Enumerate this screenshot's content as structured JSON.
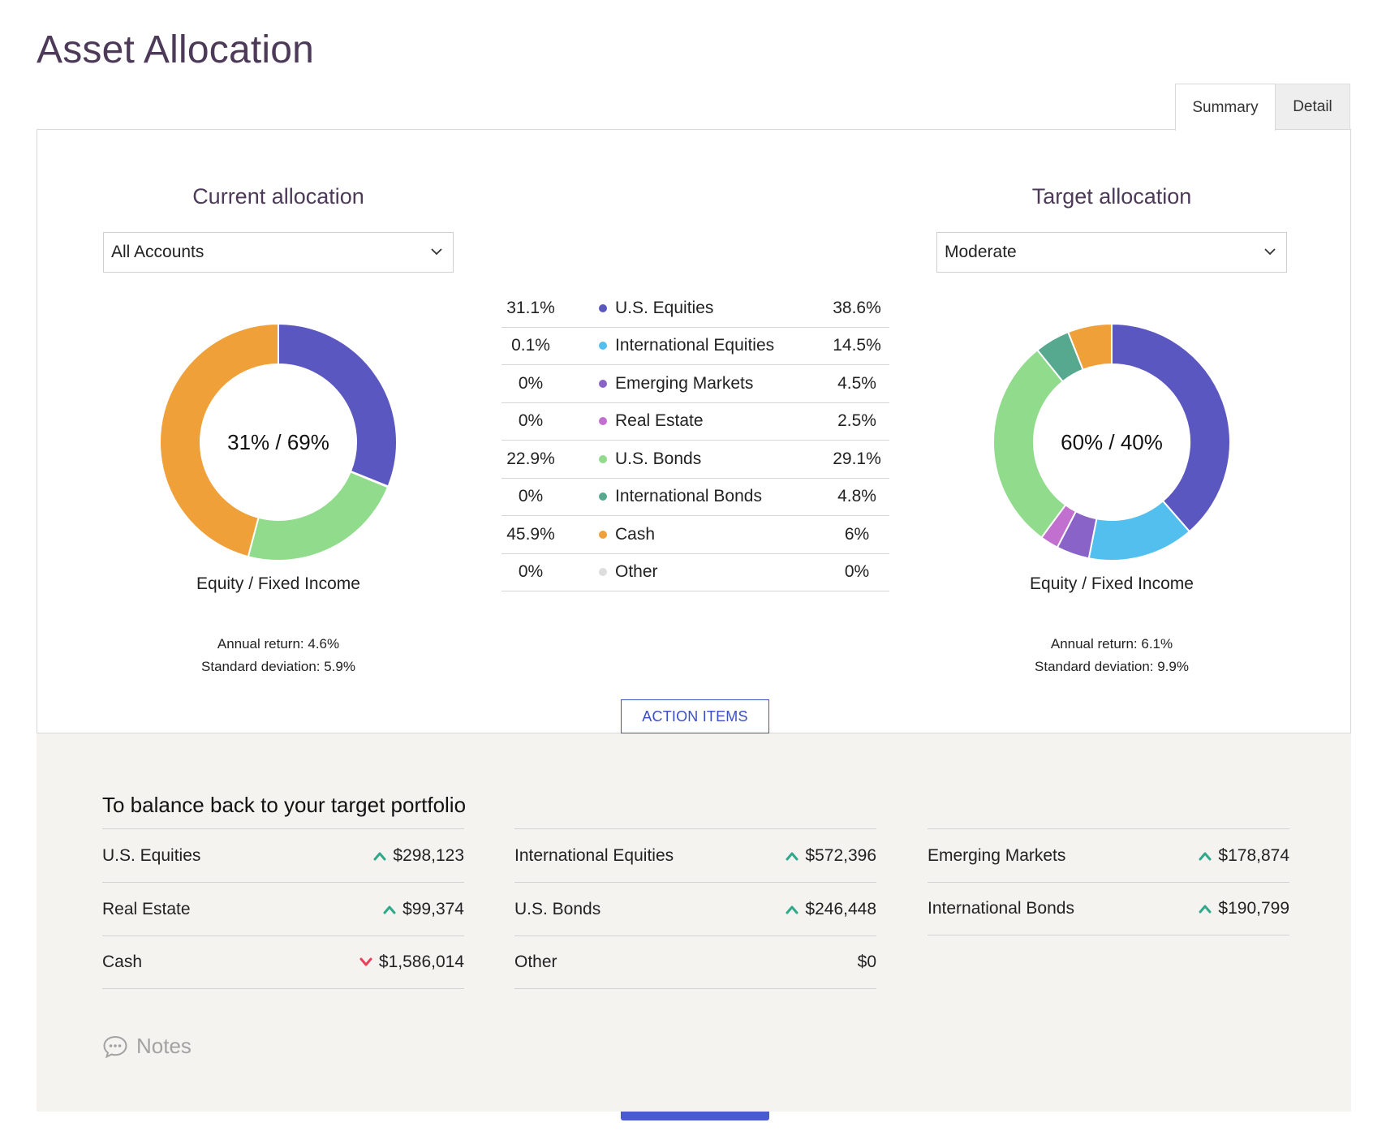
{
  "page": {
    "title": "Asset Allocation"
  },
  "tabs": [
    {
      "label": "Summary"
    },
    {
      "label": "Detail"
    }
  ],
  "current": {
    "title": "Current allocation",
    "select_value": "All Accounts",
    "center_label": "31% / 69%",
    "sub_label": "Equity / Fixed Income",
    "annual_return": "Annual return: 4.6%",
    "std_dev": "Standard deviation: 5.9%"
  },
  "target": {
    "title": "Target allocation",
    "select_value": "Moderate",
    "center_label": "60% / 40%",
    "sub_label": "Equity / Fixed Income",
    "annual_return": "Annual return: 6.1%",
    "std_dev": "Standard deviation: 9.9%"
  },
  "legend": [
    {
      "current": "31.1%",
      "name": "U.S. Equities",
      "target": "38.6%",
      "color": "#5b57c0"
    },
    {
      "current": "0.1%",
      "name": "International Equities",
      "target": "14.5%",
      "color": "#53bfee"
    },
    {
      "current": "0%",
      "name": "Emerging Markets",
      "target": "4.5%",
      "color": "#8a63c9"
    },
    {
      "current": "0%",
      "name": "Real Estate",
      "target": "2.5%",
      "color": "#c270cf"
    },
    {
      "current": "22.9%",
      "name": "U.S. Bonds",
      "target": "29.1%",
      "color": "#90db8c"
    },
    {
      "current": "0%",
      "name": "International Bonds",
      "target": "4.8%",
      "color": "#56a88e"
    },
    {
      "current": "45.9%",
      "name": "Cash",
      "target": "6%",
      "color": "#f0a038"
    },
    {
      "current": "0%",
      "name": "Other",
      "target": "0%",
      "color": "#dddddd"
    }
  ],
  "chart_data": [
    {
      "type": "pie",
      "title": "Current allocation",
      "categories": [
        "U.S. Equities",
        "International Equities",
        "Emerging Markets",
        "Real Estate",
        "U.S. Bonds",
        "International Bonds",
        "Cash",
        "Other"
      ],
      "values": [
        31.1,
        0.1,
        0,
        0,
        22.9,
        0,
        45.9,
        0
      ],
      "colors": [
        "#5b57c0",
        "#53bfee",
        "#8a63c9",
        "#c270cf",
        "#90db8c",
        "#56a88e",
        "#f0a038",
        "#dddddd"
      ]
    },
    {
      "type": "pie",
      "title": "Target allocation",
      "categories": [
        "U.S. Equities",
        "International Equities",
        "Emerging Markets",
        "Real Estate",
        "U.S. Bonds",
        "International Bonds",
        "Cash",
        "Other"
      ],
      "values": [
        38.6,
        14.5,
        4.5,
        2.5,
        29.1,
        4.8,
        6,
        0
      ],
      "colors": [
        "#5b57c0",
        "#53bfee",
        "#8a63c9",
        "#c270cf",
        "#90db8c",
        "#56a88e",
        "#f0a038",
        "#dddddd"
      ]
    }
  ],
  "action_items": {
    "label": "ACTION ITEMS"
  },
  "balance": {
    "title": "To balance back to your target portfolio",
    "columns": [
      [
        {
          "name": "U.S. Equities",
          "value": "$298,123",
          "direction": "up"
        },
        {
          "name": "Real Estate",
          "value": "$99,374",
          "direction": "up"
        },
        {
          "name": "Cash",
          "value": "$1,586,014",
          "direction": "down"
        }
      ],
      [
        {
          "name": "International Equities",
          "value": "$572,396",
          "direction": "up"
        },
        {
          "name": "U.S. Bonds",
          "value": "$246,448",
          "direction": "up"
        },
        {
          "name": "Other",
          "value": "$0",
          "direction": "none"
        }
      ],
      [
        {
          "name": "Emerging Markets",
          "value": "$178,874",
          "direction": "up"
        },
        {
          "name": "International Bonds",
          "value": "$190,799",
          "direction": "up"
        }
      ]
    ],
    "up_color": "#2fa98a",
    "down_color": "#e8405a"
  },
  "notes": {
    "label": "Notes"
  }
}
